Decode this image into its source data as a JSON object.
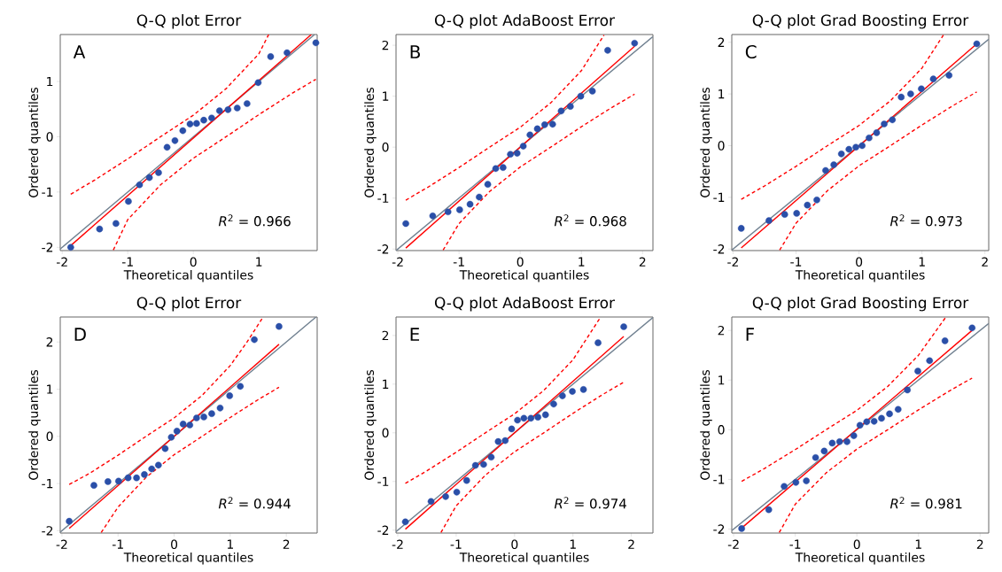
{
  "chart_data": [
    {
      "type": "scatter",
      "title": "Q-Q plot Error",
      "xlabel": "Theoretical quantiles",
      "ylabel": "Ordered quantiles",
      "xlim": [
        -2.03,
        1.89
      ],
      "ylim": [
        -2.06,
        1.85
      ],
      "xticks": [
        -2,
        -1,
        0,
        1
      ],
      "yticks": [
        -2,
        -1,
        0,
        1
      ],
      "annotations": [
        "A",
        "*R*$^{2}$ = 0.966"
      ],
      "series": [
        {
          "type": "line",
          "color": "#708090",
          "x": [
            -2.03,
            1.85
          ],
          "values": [
            -2.03,
            1.85
          ]
        },
        {
          "color": "#2a4fa8",
          "marker": "circle",
          "x": [
            -1.87,
            -1.43,
            -1.18,
            -0.99,
            -0.82,
            -0.67,
            -0.53,
            -0.4,
            -0.28,
            -0.16,
            -0.05,
            0.05,
            0.16,
            0.28,
            0.4,
            0.53,
            0.67,
            0.82,
            0.99,
            1.18,
            1.43,
            1.87
          ],
          "values": [
            -2.0,
            -1.67,
            -1.57,
            -1.17,
            -0.87,
            -0.74,
            -0.65,
            -0.19,
            -0.07,
            0.11,
            0.23,
            0.24,
            0.3,
            0.34,
            0.47,
            0.49,
            0.52,
            0.6,
            0.98,
            1.45,
            1.52,
            1.7
          ]
        },
        {
          "type": "line",
          "color": "#ff0000",
          "x": [
            -1.87,
            1.8
          ],
          "values": [
            -1.97,
            1.85
          ]
        },
        {
          "type": "line",
          "color": "#ff0000",
          "line_style": "dashed",
          "x": [
            -1.87,
            -1.5,
            -1,
            -0.5,
            0,
            0.5,
            1,
            1.15
          ],
          "values": [
            -1.04,
            -0.78,
            -0.4,
            0.0,
            0.39,
            0.87,
            1.5,
            1.85
          ]
        },
        {
          "type": "line",
          "color": "#ff0000",
          "line_style": "dashed",
          "x": [
            -1.22,
            -1,
            -0.5,
            0,
            0.5,
            1,
            1.5,
            1.87
          ],
          "values": [
            -2.05,
            -1.5,
            -0.87,
            -0.39,
            0.0,
            0.4,
            0.78,
            1.04
          ]
        }
      ]
    },
    {
      "type": "scatter",
      "title": "Q-Q plot AdaBoost Error",
      "xlabel": "Theoretical quantiles",
      "ylabel": "Ordered quantiles",
      "xlim": [
        -2.03,
        2.17
      ],
      "ylim": [
        -2.03,
        2.21
      ],
      "xticks": [
        -2,
        -1,
        0,
        1,
        2
      ],
      "yticks": [
        -2,
        -1,
        0,
        1,
        2
      ],
      "annotations": [
        "B",
        "*R*$^{2}$ = 0.968"
      ],
      "series": [
        {
          "type": "line",
          "color": "#708090",
          "x": [
            -2.03,
            2.17
          ],
          "values": [
            -2.03,
            2.17
          ]
        },
        {
          "color": "#2a4fa8",
          "marker": "circle",
          "x": [
            -1.87,
            -1.43,
            -1.18,
            -0.99,
            -0.82,
            -0.67,
            -0.53,
            -0.4,
            -0.28,
            -0.16,
            -0.05,
            0.05,
            0.16,
            0.28,
            0.4,
            0.53,
            0.67,
            0.82,
            0.99,
            1.18,
            1.43,
            1.87
          ],
          "values": [
            -1.5,
            -1.35,
            -1.27,
            -1.23,
            -1.12,
            -0.98,
            -0.73,
            -0.42,
            -0.4,
            -0.14,
            -0.12,
            0.02,
            0.24,
            0.36,
            0.44,
            0.45,
            0.71,
            0.8,
            1.0,
            1.1,
            1.9,
            2.04
          ]
        },
        {
          "type": "line",
          "color": "#ff0000",
          "x": [
            -1.87,
            1.87
          ],
          "values": [
            -1.98,
            1.98
          ]
        },
        {
          "type": "line",
          "color": "#ff0000",
          "line_style": "dashed",
          "x": [
            -1.87,
            -1.5,
            -1,
            -0.5,
            0,
            0.5,
            1,
            1.37
          ],
          "values": [
            -1.04,
            -0.78,
            -0.4,
            0.0,
            0.39,
            0.87,
            1.5,
            2.2
          ]
        },
        {
          "type": "line",
          "color": "#ff0000",
          "line_style": "dashed",
          "x": [
            -1.26,
            -1,
            -0.5,
            0,
            0.5,
            1,
            1.5,
            1.87
          ],
          "values": [
            -2.02,
            -1.5,
            -0.87,
            -0.39,
            0.0,
            0.4,
            0.78,
            1.04
          ]
        }
      ]
    },
    {
      "type": "scatter",
      "title": "Q-Q plot Grad Boosting Error",
      "xlabel": "Theoretical quantiles",
      "ylabel": "Ordered quantiles",
      "xlim": [
        -2.02,
        2.06
      ],
      "ylim": [
        -2.03,
        2.15
      ],
      "xticks": [
        -2,
        -1,
        0,
        1,
        2
      ],
      "yticks": [
        -2,
        -1,
        0,
        1,
        2
      ],
      "annotations": [
        "C",
        "*R*$^{2}$ = 0.973"
      ],
      "series": [
        {
          "type": "line",
          "color": "#708090",
          "x": [
            -2.02,
            2.06
          ],
          "values": [
            -2.02,
            2.06
          ]
        },
        {
          "color": "#2a4fa8",
          "marker": "circle",
          "x": [
            -1.87,
            -1.43,
            -1.18,
            -0.99,
            -0.82,
            -0.67,
            -0.53,
            -0.4,
            -0.28,
            -0.16,
            -0.05,
            0.05,
            0.16,
            0.28,
            0.4,
            0.53,
            0.67,
            0.82,
            0.99,
            1.18,
            1.43,
            1.87
          ],
          "values": [
            -1.6,
            -1.45,
            -1.33,
            -1.31,
            -1.15,
            -1.05,
            -0.48,
            -0.37,
            -0.16,
            -0.07,
            -0.03,
            0.0,
            0.15,
            0.25,
            0.42,
            0.5,
            0.94,
            1.0,
            1.1,
            1.29,
            1.36,
            1.97
          ]
        },
        {
          "type": "line",
          "color": "#ff0000",
          "x": [
            -1.87,
            1.87
          ],
          "values": [
            -1.98,
            1.97
          ]
        },
        {
          "type": "line",
          "color": "#ff0000",
          "line_style": "dashed",
          "x": [
            -1.87,
            -1.5,
            -1,
            -0.5,
            0,
            0.5,
            1,
            1.34
          ],
          "values": [
            -1.04,
            -0.78,
            -0.4,
            0.0,
            0.39,
            0.87,
            1.5,
            2.14
          ]
        },
        {
          "type": "line",
          "color": "#ff0000",
          "line_style": "dashed",
          "x": [
            -1.26,
            -1,
            -0.5,
            0,
            0.5,
            1,
            1.5,
            1.87
          ],
          "values": [
            -2.02,
            -1.5,
            -0.87,
            -0.39,
            0.0,
            0.4,
            0.78,
            1.04
          ]
        }
      ]
    },
    {
      "type": "scatter",
      "title": "Q-Q plot Error",
      "xlabel": "Theoretical quantiles",
      "ylabel": "Ordered quantiles",
      "xlim": [
        -2.03,
        2.55
      ],
      "ylim": [
        -2.05,
        2.53
      ],
      "xticks": [
        -2,
        -1,
        0,
        1,
        2
      ],
      "yticks": [
        -2,
        -1,
        0,
        1,
        2
      ],
      "annotations": [
        "D",
        "*R*$^{2}$ = 0.944"
      ],
      "series": [
        {
          "type": "line",
          "color": "#708090",
          "x": [
            -2.03,
            2.53
          ],
          "values": [
            -2.03,
            2.53
          ]
        },
        {
          "color": "#2a4fa8",
          "marker": "circle",
          "x": [
            -1.87,
            -1.43,
            -1.18,
            -0.99,
            -0.82,
            -0.67,
            -0.53,
            -0.4,
            -0.28,
            -0.16,
            -0.05,
            0.05,
            0.16,
            0.28,
            0.4,
            0.53,
            0.67,
            0.82,
            0.99,
            1.18,
            1.43,
            1.87
          ],
          "values": [
            -1.8,
            -1.04,
            -0.96,
            -0.95,
            -0.88,
            -0.88,
            -0.81,
            -0.69,
            -0.61,
            -0.26,
            -0.02,
            0.11,
            0.26,
            0.24,
            0.39,
            0.41,
            0.48,
            0.6,
            0.86,
            1.06,
            2.05,
            2.33
          ]
        },
        {
          "type": "line",
          "color": "#ff0000",
          "x": [
            -1.87,
            1.87
          ],
          "values": [
            -1.95,
            1.95
          ]
        },
        {
          "type": "line",
          "color": "#ff0000",
          "line_style": "dashed",
          "x": [
            -1.87,
            -1.5,
            -1,
            -0.5,
            0,
            0.5,
            1,
            1.3,
            1.57
          ],
          "values": [
            -1.02,
            -0.78,
            -0.4,
            0.0,
            0.39,
            0.87,
            1.5,
            2.0,
            2.5
          ]
        },
        {
          "type": "line",
          "color": "#ff0000",
          "line_style": "dashed",
          "x": [
            -1.3,
            -1,
            -0.5,
            0,
            0.5,
            1,
            1.5,
            1.87
          ],
          "values": [
            -2.04,
            -1.5,
            -0.87,
            -0.39,
            0.0,
            0.4,
            0.78,
            1.04
          ]
        }
      ]
    },
    {
      "type": "scatter",
      "title": "Q-Q plot AdaBoost Error",
      "xlabel": "Theoretical quantiles",
      "ylabel": "Ordered quantiles",
      "xlim": [
        -2.03,
        2.37
      ],
      "ylim": [
        -2.06,
        2.38
      ],
      "xticks": [
        -2,
        -1,
        0,
        1,
        2
      ],
      "yticks": [
        -2,
        -1,
        0,
        1,
        2
      ],
      "annotations": [
        "E",
        "*R*$^{2}$ = 0.974"
      ],
      "series": [
        {
          "type": "line",
          "color": "#708090",
          "x": [
            -2.03,
            2.37
          ],
          "values": [
            -2.03,
            2.37
          ]
        },
        {
          "color": "#2a4fa8",
          "marker": "circle",
          "x": [
            -1.87,
            -1.43,
            -1.18,
            -0.99,
            -0.82,
            -0.67,
            -0.53,
            -0.4,
            -0.28,
            -0.16,
            -0.05,
            0.05,
            0.16,
            0.28,
            0.4,
            0.53,
            0.67,
            0.82,
            0.99,
            1.18,
            1.43,
            1.87
          ],
          "values": [
            -1.83,
            -1.41,
            -1.31,
            -1.22,
            -0.98,
            -0.67,
            -0.65,
            -0.5,
            -0.18,
            -0.16,
            0.08,
            0.26,
            0.3,
            0.3,
            0.32,
            0.37,
            0.59,
            0.76,
            0.85,
            0.89,
            1.85,
            2.18
          ]
        },
        {
          "type": "line",
          "color": "#ff0000",
          "x": [
            -1.87,
            1.87
          ],
          "values": [
            -1.98,
            1.98
          ]
        },
        {
          "type": "line",
          "color": "#ff0000",
          "line_style": "dashed",
          "x": [
            -1.87,
            -1.5,
            -1,
            -0.5,
            0,
            0.5,
            1,
            1.47
          ],
          "values": [
            -1.04,
            -0.78,
            -0.4,
            0.0,
            0.39,
            0.87,
            1.5,
            2.37
          ]
        },
        {
          "type": "line",
          "color": "#ff0000",
          "line_style": "dashed",
          "x": [
            -1.26,
            -1,
            -0.5,
            0,
            0.5,
            1,
            1.5,
            1.87
          ],
          "values": [
            -2.05,
            -1.5,
            -0.87,
            -0.39,
            0.0,
            0.4,
            0.78,
            1.04
          ]
        }
      ]
    },
    {
      "type": "scatter",
      "title": "Q-Q plot Grad Boosting Error",
      "xlabel": "Theoretical quantiles",
      "ylabel": "Ordered quantiles",
      "xlim": [
        -2.03,
        2.14
      ],
      "ylim": [
        -2.08,
        2.27
      ],
      "xticks": [
        -2,
        -1,
        0,
        1,
        2
      ],
      "yticks": [
        -2,
        -1,
        0,
        1,
        2
      ],
      "annotations": [
        "F",
        "*R*$^{2}$ = 0.981"
      ],
      "series": [
        {
          "type": "line",
          "color": "#708090",
          "x": [
            -2.03,
            2.14
          ],
          "values": [
            -2.03,
            2.14
          ]
        },
        {
          "color": "#2a4fa8",
          "marker": "circle",
          "x": [
            -1.87,
            -1.43,
            -1.18,
            -0.99,
            -0.82,
            -0.67,
            -0.53,
            -0.4,
            -0.28,
            -0.16,
            -0.05,
            0.05,
            0.16,
            0.28,
            0.4,
            0.53,
            0.67,
            0.82,
            0.99,
            1.18,
            1.43,
            1.87
          ],
          "values": [
            -1.99,
            -1.61,
            -1.14,
            -1.06,
            -1.03,
            -0.56,
            -0.43,
            -0.27,
            -0.24,
            -0.24,
            -0.12,
            0.09,
            0.16,
            0.17,
            0.23,
            0.32,
            0.41,
            0.8,
            1.18,
            1.39,
            1.79,
            2.05
          ]
        },
        {
          "type": "line",
          "color": "#ff0000",
          "x": [
            -1.87,
            1.87
          ],
          "values": [
            -1.98,
            2.0
          ]
        },
        {
          "type": "line",
          "color": "#ff0000",
          "line_style": "dashed",
          "x": [
            -1.87,
            -1.5,
            -1,
            -0.5,
            0,
            0.5,
            1,
            1.44
          ],
          "values": [
            -1.04,
            -0.78,
            -0.4,
            0.0,
            0.39,
            0.87,
            1.5,
            2.26
          ]
        },
        {
          "type": "line",
          "color": "#ff0000",
          "line_style": "dashed",
          "x": [
            -1.26,
            -1,
            -0.5,
            0,
            0.5,
            1,
            1.5,
            1.87
          ],
          "values": [
            -2.07,
            -1.5,
            -0.87,
            -0.39,
            0.0,
            0.4,
            0.78,
            1.04
          ]
        }
      ]
    }
  ]
}
